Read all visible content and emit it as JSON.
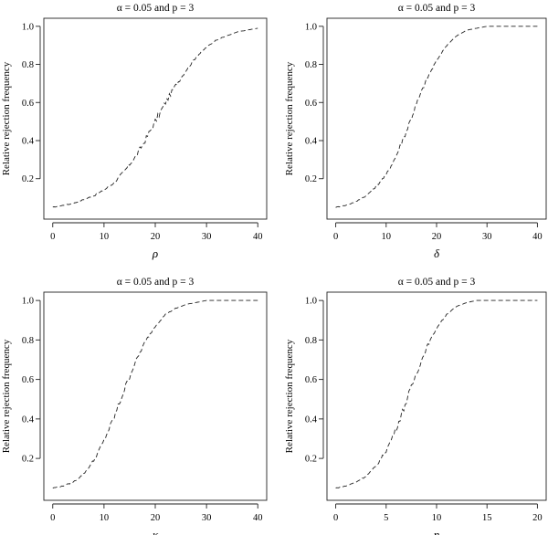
{
  "chart_data": [
    {
      "type": "line",
      "title": "α = 0.05 and p = 3",
      "xlabel": "ρ",
      "ylabel": "Relative rejection frequency",
      "xlim": [
        0,
        40
      ],
      "ylim": [
        0.03,
        1.0
      ],
      "xticks": [
        0,
        10,
        20,
        30,
        40
      ],
      "yticks": [
        0.2,
        0.4,
        0.6,
        0.8,
        1.0
      ],
      "ytick_labels": [
        "0.2",
        "0.4",
        "0.6",
        "0.8",
        "1.0"
      ],
      "grid": false,
      "series": [
        {
          "x": [
            0,
            2,
            4,
            6,
            8,
            10,
            12,
            14,
            16,
            18,
            20,
            22,
            24,
            26,
            28,
            30,
            32,
            34,
            36,
            38,
            40
          ],
          "y": [
            0.05,
            0.06,
            0.07,
            0.09,
            0.11,
            0.14,
            0.18,
            0.24,
            0.31,
            0.4,
            0.5,
            0.6,
            0.69,
            0.77,
            0.84,
            0.89,
            0.93,
            0.95,
            0.97,
            0.98,
            0.99
          ]
        }
      ]
    },
    {
      "type": "line",
      "title": "α = 0.05 and p = 3",
      "xlabel": "δ",
      "ylabel": "Relative rejection frequency",
      "xlim": [
        0,
        40
      ],
      "ylim": [
        0.03,
        1.0
      ],
      "xticks": [
        0,
        10,
        20,
        30,
        40
      ],
      "yticks": [
        0.2,
        0.4,
        0.6,
        0.8,
        1.0
      ],
      "ytick_labels": [
        "0.2",
        "0.4",
        "0.6",
        "0.8",
        "1.0"
      ],
      "grid": false,
      "series": [
        {
          "x": [
            0,
            2,
            4,
            6,
            8,
            10,
            12,
            14,
            16,
            18,
            20,
            22,
            24,
            26,
            28,
            30,
            32,
            34,
            36,
            38,
            40
          ],
          "y": [
            0.05,
            0.06,
            0.08,
            0.11,
            0.16,
            0.22,
            0.32,
            0.45,
            0.59,
            0.72,
            0.82,
            0.9,
            0.95,
            0.98,
            0.99,
            1.0,
            1.0,
            1.0,
            1.0,
            1.0,
            1.0
          ]
        }
      ]
    },
    {
      "type": "line",
      "title": "α = 0.05 and p = 3",
      "xlabel": "κ",
      "ylabel": "Relative rejection frequency",
      "xlim": [
        0,
        40
      ],
      "ylim": [
        0.03,
        1.0
      ],
      "xticks": [
        0,
        10,
        20,
        30,
        40
      ],
      "yticks": [
        0.2,
        0.4,
        0.6,
        0.8,
        1.0
      ],
      "ytick_labels": [
        "0.2",
        "0.4",
        "0.6",
        "0.8",
        "1.0"
      ],
      "grid": false,
      "series": [
        {
          "x": [
            0,
            2,
            4,
            6,
            8,
            10,
            12,
            14,
            16,
            18,
            20,
            22,
            24,
            26,
            28,
            30,
            32,
            34,
            36,
            38,
            40
          ],
          "y": [
            0.05,
            0.06,
            0.08,
            0.12,
            0.19,
            0.29,
            0.41,
            0.55,
            0.68,
            0.79,
            0.87,
            0.93,
            0.96,
            0.98,
            0.99,
            1.0,
            1.0,
            1.0,
            1.0,
            1.0,
            1.0
          ]
        }
      ]
    },
    {
      "type": "line",
      "title": "α = 0.05 and p = 3",
      "xlabel": "η",
      "ylabel": "Relative rejection frequency",
      "xlim": [
        0,
        20
      ],
      "ylim": [
        0.03,
        1.0
      ],
      "xticks": [
        0,
        5,
        10,
        15,
        20
      ],
      "yticks": [
        0.2,
        0.4,
        0.6,
        0.8,
        1.0
      ],
      "ytick_labels": [
        "0.2",
        "0.4",
        "0.6",
        "0.8",
        "1.0"
      ],
      "grid": false,
      "series": [
        {
          "x": [
            0,
            1,
            2,
            3,
            4,
            5,
            6,
            7,
            8,
            9,
            10,
            11,
            12,
            13,
            14,
            15,
            16,
            17,
            18,
            19,
            20
          ],
          "y": [
            0.05,
            0.06,
            0.08,
            0.11,
            0.16,
            0.24,
            0.35,
            0.49,
            0.63,
            0.76,
            0.86,
            0.93,
            0.97,
            0.99,
            1.0,
            1.0,
            1.0,
            1.0,
            1.0,
            1.0,
            1.0
          ]
        }
      ]
    }
  ]
}
